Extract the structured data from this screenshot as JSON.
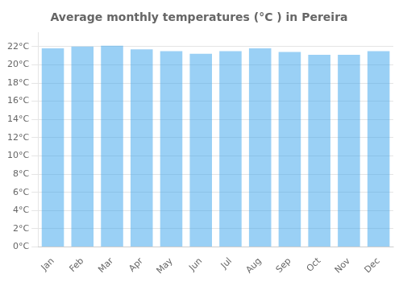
{
  "chart_data": {
    "type": "bar",
    "title": "Average monthly temperatures (°C ) in Pereira",
    "categories": [
      "Jan",
      "Feb",
      "Mar",
      "Apr",
      "May",
      "Jun",
      "Jul",
      "Aug",
      "Sep",
      "Oct",
      "Nov",
      "Dec"
    ],
    "values": [
      21.8,
      22.0,
      22.1,
      21.7,
      21.5,
      21.2,
      21.5,
      21.8,
      21.4,
      21.1,
      21.1,
      21.5
    ],
    "ylim": [
      0,
      23.5
    ],
    "yticks": [
      {
        "value": 0,
        "label": "0°C"
      },
      {
        "value": 2,
        "label": "2°C"
      },
      {
        "value": 4,
        "label": "4°C"
      },
      {
        "value": 6,
        "label": "6°C"
      },
      {
        "value": 8,
        "label": "8°C"
      },
      {
        "value": 10,
        "label": "10°C"
      },
      {
        "value": 12,
        "label": "12°C"
      },
      {
        "value": 14,
        "label": "14°C"
      },
      {
        "value": 16,
        "label": "16°C"
      },
      {
        "value": 18,
        "label": "18°C"
      },
      {
        "value": 20,
        "label": "20°C"
      },
      {
        "value": 22,
        "label": "22°C"
      }
    ],
    "grid": true
  }
}
